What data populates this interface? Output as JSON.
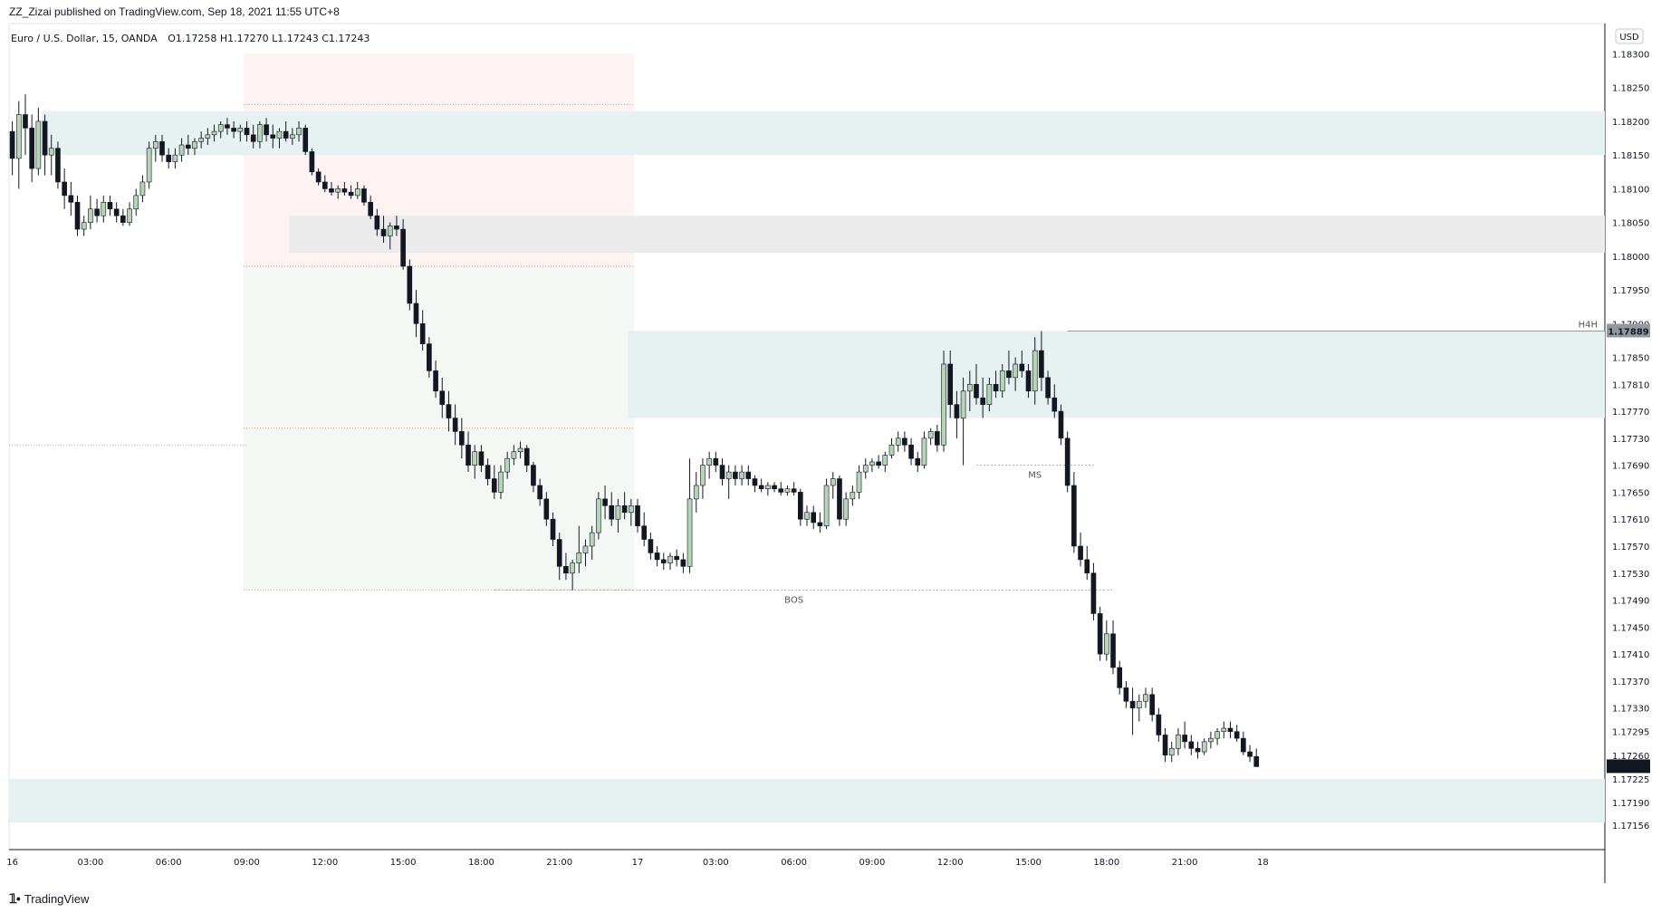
{
  "header": {
    "published_text": "ZZ_Zizai published on TradingView.com, Sep 18, 2021 11:55 UTC+8"
  },
  "footer": {
    "logo_label": "TradingView"
  },
  "legend": {
    "symbol_text": "Euro / U.S. Dollar, 15, OANDA",
    "ohlc_text": "O1.17258  H1.17270  L1.17243  C1.17243"
  },
  "currency_badge": "USD",
  "annotations": {
    "h4h_label": "H4H",
    "h4h_price": "1.17889",
    "ms_label": "MS",
    "bos_label": "BOS",
    "last_price": "1.17243"
  },
  "colors": {
    "bull": "#b7d4b7",
    "bear": "#131722",
    "wick": "#131722",
    "zone": "#e8f1f1",
    "zone_gray": "#ebebeb",
    "premium": "#fdf3f3",
    "discount": "#f4f8f4",
    "dotted": "#c9a27a",
    "last_price_bg": "#131722",
    "h4h_bg": "#9598a1"
  },
  "chart_data": {
    "type": "candlestick",
    "symbol": "EURUSD",
    "timeframe": "15",
    "y_axis_ticks": [
      1.183,
      1.1825,
      1.182,
      1.1815,
      1.181,
      1.1805,
      1.18,
      1.1795,
      1.179,
      1.1785,
      1.1781,
      1.1777,
      1.1773,
      1.1769,
      1.1765,
      1.1761,
      1.1757,
      1.1753,
      1.1749,
      1.1745,
      1.1741,
      1.1737,
      1.1733,
      1.17295,
      1.1726,
      1.17225,
      1.1719,
      1.17156
    ],
    "y_axis_tick_labels": [
      "1.18300",
      "1.18250",
      "1.18200",
      "1.18150",
      "1.18100",
      "1.18050",
      "1.18000",
      "1.17950",
      "1.17900",
      "1.17850",
      "1.17810",
      "1.17770",
      "1.17730",
      "1.17690",
      "1.17650",
      "1.17610",
      "1.17570",
      "1.17530",
      "1.17490",
      "1.17450",
      "1.17410",
      "1.17370",
      "1.17330",
      "1.17295",
      "1.17260",
      "1.17225",
      "1.17190",
      "1.17156"
    ],
    "x_axis_labels": [
      "16",
      "03:00",
      "06:00",
      "09:00",
      "12:00",
      "15:00",
      "18:00",
      "21:00",
      "17",
      "03:00",
      "06:00",
      "09:00",
      "12:00",
      "15:00",
      "18:00",
      "21:00",
      "18"
    ],
    "bar_count": 245,
    "label_bar_index": [
      0,
      12,
      24,
      36,
      48,
      60,
      72,
      84,
      96,
      108,
      120,
      132,
      144,
      156,
      168,
      180,
      192
    ],
    "ohlc": [
      [
        1.18185,
        1.182,
        1.1812,
        1.18145
      ],
      [
        1.18145,
        1.1823,
        1.181,
        1.1821
      ],
      [
        1.1821,
        1.1824,
        1.1815,
        1.1819
      ],
      [
        1.1819,
        1.1821,
        1.1811,
        1.1813
      ],
      [
        1.1813,
        1.1822,
        1.1812,
        1.182
      ],
      [
        1.182,
        1.1821,
        1.1812,
        1.1815
      ],
      [
        1.1815,
        1.1818,
        1.1812,
        1.1816
      ],
      [
        1.1816,
        1.1817,
        1.181,
        1.1811
      ],
      [
        1.1811,
        1.1813,
        1.1807,
        1.1809
      ],
      [
        1.1809,
        1.1811,
        1.1806,
        1.1808
      ],
      [
        1.1808,
        1.1809,
        1.1803,
        1.1804
      ],
      [
        1.1804,
        1.1806,
        1.1803,
        1.1805
      ],
      [
        1.1805,
        1.1809,
        1.1804,
        1.1807
      ],
      [
        1.1807,
        1.18085,
        1.1805,
        1.1806
      ],
      [
        1.1806,
        1.1809,
        1.1805,
        1.1808
      ],
      [
        1.1808,
        1.1809,
        1.1806,
        1.1807
      ],
      [
        1.1807,
        1.1808,
        1.1805,
        1.1806
      ],
      [
        1.1806,
        1.1807,
        1.18045,
        1.1805
      ],
      [
        1.1805,
        1.1808,
        1.18045,
        1.1807
      ],
      [
        1.1807,
        1.181,
        1.1806,
        1.1809
      ],
      [
        1.1809,
        1.1812,
        1.1808,
        1.1811
      ],
      [
        1.1811,
        1.1817,
        1.181,
        1.1816
      ],
      [
        1.1816,
        1.1818,
        1.1814,
        1.1817
      ],
      [
        1.1817,
        1.1818,
        1.1814,
        1.1815
      ],
      [
        1.1815,
        1.1816,
        1.1813,
        1.1814
      ],
      [
        1.1814,
        1.1816,
        1.1813,
        1.1815
      ],
      [
        1.1815,
        1.18175,
        1.1814,
        1.18165
      ],
      [
        1.18165,
        1.1818,
        1.1815,
        1.1816
      ],
      [
        1.1816,
        1.18175,
        1.1815,
        1.1817
      ],
      [
        1.1817,
        1.18185,
        1.1816,
        1.18175
      ],
      [
        1.18175,
        1.1819,
        1.18165,
        1.1818
      ],
      [
        1.1818,
        1.18195,
        1.1817,
        1.18185
      ],
      [
        1.18185,
        1.182,
        1.18175,
        1.18195
      ],
      [
        1.18195,
        1.18205,
        1.1818,
        1.1819
      ],
      [
        1.1819,
        1.182,
        1.18175,
        1.18185
      ],
      [
        1.18185,
        1.18195,
        1.1817,
        1.1819
      ],
      [
        1.1819,
        1.182,
        1.1817,
        1.1818
      ],
      [
        1.1818,
        1.18195,
        1.1816,
        1.1817
      ],
      [
        1.1817,
        1.182,
        1.1816,
        1.18195
      ],
      [
        1.18195,
        1.18205,
        1.1817,
        1.1818
      ],
      [
        1.1818,
        1.18195,
        1.1816,
        1.18175
      ],
      [
        1.18175,
        1.1819,
        1.1816,
        1.18185
      ],
      [
        1.18185,
        1.182,
        1.1817,
        1.18175
      ],
      [
        1.18175,
        1.1819,
        1.18165,
        1.1818
      ],
      [
        1.1818,
        1.182,
        1.1817,
        1.1819
      ],
      [
        1.1819,
        1.18195,
        1.1815,
        1.18155
      ],
      [
        1.18155,
        1.1816,
        1.1812,
        1.18125
      ],
      [
        1.18125,
        1.1813,
        1.18105,
        1.1811
      ],
      [
        1.1811,
        1.1812,
        1.18095,
        1.181
      ],
      [
        1.181,
        1.1811,
        1.1809,
        1.18095
      ],
      [
        1.18095,
        1.18105,
        1.18085,
        1.181
      ],
      [
        1.181,
        1.1811,
        1.1809,
        1.18095
      ],
      [
        1.18095,
        1.18105,
        1.18085,
        1.1809
      ],
      [
        1.1809,
        1.1811,
        1.18085,
        1.181
      ],
      [
        1.181,
        1.18105,
        1.18075,
        1.1808
      ],
      [
        1.1808,
        1.1809,
        1.18055,
        1.1806
      ],
      [
        1.1806,
        1.1807,
        1.1803,
        1.1804
      ],
      [
        1.1804,
        1.1806,
        1.1802,
        1.1803
      ],
      [
        1.1803,
        1.1805,
        1.1801,
        1.18045
      ],
      [
        1.18045,
        1.1806,
        1.1803,
        1.1804
      ],
      [
        1.1804,
        1.18055,
        1.1798,
        1.17985
      ],
      [
        1.17985,
        1.17995,
        1.1792,
        1.1793
      ],
      [
        1.1793,
        1.1795,
        1.1788,
        1.179
      ],
      [
        1.179,
        1.1792,
        1.1786,
        1.1787
      ],
      [
        1.1787,
        1.1788,
        1.1782,
        1.1783
      ],
      [
        1.1783,
        1.17845,
        1.1779,
        1.178
      ],
      [
        1.178,
        1.1782,
        1.1776,
        1.1778
      ],
      [
        1.1778,
        1.178,
        1.1774,
        1.1776
      ],
      [
        1.1776,
        1.1778,
        1.1772,
        1.1774
      ],
      [
        1.1774,
        1.1776,
        1.177,
        1.1772
      ],
      [
        1.1772,
        1.1774,
        1.1768,
        1.1769
      ],
      [
        1.1769,
        1.1772,
        1.1767,
        1.1771
      ],
      [
        1.1771,
        1.1772,
        1.1768,
        1.1769
      ],
      [
        1.1769,
        1.177,
        1.1766,
        1.1767
      ],
      [
        1.1767,
        1.1769,
        1.1764,
        1.1765
      ],
      [
        1.1765,
        1.1769,
        1.1764,
        1.1768
      ],
      [
        1.1768,
        1.1771,
        1.1767,
        1.177
      ],
      [
        1.177,
        1.1772,
        1.1769,
        1.1771
      ],
      [
        1.1771,
        1.17725,
        1.177,
        1.17715
      ],
      [
        1.17715,
        1.1772,
        1.1768,
        1.1769
      ],
      [
        1.1769,
        1.17695,
        1.1765,
        1.1766
      ],
      [
        1.1766,
        1.1767,
        1.1763,
        1.1764
      ],
      [
        1.1764,
        1.1765,
        1.176,
        1.1761
      ],
      [
        1.1761,
        1.1762,
        1.1757,
        1.1758
      ],
      [
        1.1758,
        1.1759,
        1.1752,
        1.1754
      ],
      [
        1.1754,
        1.1756,
        1.1752,
        1.1753
      ],
      [
        1.1753,
        1.1755,
        1.17505,
        1.17545
      ],
      [
        1.17545,
        1.176,
        1.1753,
        1.1756
      ],
      [
        1.1756,
        1.1758,
        1.1754,
        1.1757
      ],
      [
        1.1757,
        1.176,
        1.1755,
        1.1759
      ],
      [
        1.1759,
        1.1765,
        1.1758,
        1.1764
      ],
      [
        1.1764,
        1.1766,
        1.1761,
        1.1763
      ],
      [
        1.1763,
        1.1765,
        1.176,
        1.1761
      ],
      [
        1.1761,
        1.1764,
        1.1759,
        1.1763
      ],
      [
        1.1763,
        1.1765,
        1.1761,
        1.1762
      ],
      [
        1.1762,
        1.1764,
        1.176,
        1.1763
      ],
      [
        1.1763,
        1.1764,
        1.1759,
        1.176
      ],
      [
        1.176,
        1.1762,
        1.1757,
        1.1758
      ],
      [
        1.1758,
        1.1759,
        1.1755,
        1.1756
      ],
      [
        1.1756,
        1.1757,
        1.1754,
        1.1755
      ],
      [
        1.1755,
        1.1756,
        1.17535,
        1.17545
      ],
      [
        1.17545,
        1.1756,
        1.17535,
        1.17555
      ],
      [
        1.17555,
        1.17565,
        1.1754,
        1.1755
      ],
      [
        1.1755,
        1.1756,
        1.1753,
        1.1754
      ],
      [
        1.1754,
        1.177,
        1.1753,
        1.1764
      ],
      [
        1.1764,
        1.1768,
        1.1762,
        1.1766
      ],
      [
        1.1766,
        1.177,
        1.1764,
        1.1769
      ],
      [
        1.1769,
        1.1771,
        1.1767,
        1.177
      ],
      [
        1.177,
        1.1771,
        1.1768,
        1.1769
      ],
      [
        1.1769,
        1.177,
        1.1766,
        1.1767
      ],
      [
        1.1767,
        1.1769,
        1.1764,
        1.1768
      ],
      [
        1.1768,
        1.1769,
        1.1766,
        1.1767
      ],
      [
        1.1767,
        1.1769,
        1.1766,
        1.1768
      ],
      [
        1.1768,
        1.1769,
        1.1766,
        1.1767
      ],
      [
        1.1767,
        1.17675,
        1.1765,
        1.1766
      ],
      [
        1.1766,
        1.1767,
        1.1765,
        1.17655
      ],
      [
        1.17655,
        1.17665,
        1.17645,
        1.1766
      ],
      [
        1.1766,
        1.17665,
        1.1765,
        1.17655
      ],
      [
        1.17655,
        1.17665,
        1.17645,
        1.1765
      ],
      [
        1.1765,
        1.1766,
        1.17645,
        1.17655
      ],
      [
        1.17655,
        1.17665,
        1.17645,
        1.1765
      ],
      [
        1.1765,
        1.17655,
        1.176,
        1.1761
      ],
      [
        1.1761,
        1.1763,
        1.176,
        1.1762
      ],
      [
        1.1762,
        1.1763,
        1.17595,
        1.17605
      ],
      [
        1.17605,
        1.1762,
        1.1759,
        1.176
      ],
      [
        1.176,
        1.1767,
        1.17595,
        1.1766
      ],
      [
        1.1766,
        1.1768,
        1.1764,
        1.1767
      ],
      [
        1.1767,
        1.17675,
        1.176,
        1.1761
      ],
      [
        1.1761,
        1.1765,
        1.176,
        1.1764
      ],
      [
        1.1764,
        1.1766,
        1.1763,
        1.1765
      ],
      [
        1.1765,
        1.1769,
        1.1764,
        1.1768
      ],
      [
        1.1768,
        1.177,
        1.1767,
        1.1769
      ],
      [
        1.1769,
        1.177,
        1.1768,
        1.17695
      ],
      [
        1.17695,
        1.17705,
        1.17685,
        1.1769
      ],
      [
        1.1769,
        1.1771,
        1.1768,
        1.17705
      ],
      [
        1.17705,
        1.1773,
        1.177,
        1.1772
      ],
      [
        1.1772,
        1.1774,
        1.1771,
        1.1773
      ],
      [
        1.1773,
        1.1774,
        1.1771,
        1.1772
      ],
      [
        1.1772,
        1.1773,
        1.1769,
        1.177
      ],
      [
        1.177,
        1.1771,
        1.1768,
        1.1769
      ],
      [
        1.1769,
        1.1774,
        1.17685,
        1.1773
      ],
      [
        1.1773,
        1.17745,
        1.1772,
        1.1774
      ],
      [
        1.1774,
        1.1775,
        1.1771,
        1.1772
      ],
      [
        1.1772,
        1.1786,
        1.1771,
        1.1784
      ],
      [
        1.1784,
        1.1786,
        1.1776,
        1.1778
      ],
      [
        1.1778,
        1.178,
        1.1773,
        1.1776
      ],
      [
        1.1776,
        1.1782,
        1.1769,
        1.178
      ],
      [
        1.178,
        1.1783,
        1.1777,
        1.1781
      ],
      [
        1.1781,
        1.1784,
        1.1778,
        1.1779
      ],
      [
        1.1779,
        1.1782,
        1.1776,
        1.1778
      ],
      [
        1.1778,
        1.1782,
        1.1777,
        1.1781
      ],
      [
        1.1781,
        1.1783,
        1.1779,
        1.178
      ],
      [
        1.178,
        1.1784,
        1.1779,
        1.1783
      ],
      [
        1.1783,
        1.1786,
        1.1781,
        1.1782
      ],
      [
        1.1782,
        1.1785,
        1.178,
        1.1784
      ],
      [
        1.1784,
        1.1786,
        1.1782,
        1.1783
      ],
      [
        1.1783,
        1.1784,
        1.1779,
        1.178
      ],
      [
        1.178,
        1.1788,
        1.1778,
        1.1786
      ],
      [
        1.1786,
        1.17889,
        1.178,
        1.1782
      ],
      [
        1.1782,
        1.1783,
        1.1778,
        1.1779
      ],
      [
        1.1779,
        1.1781,
        1.1776,
        1.1777
      ],
      [
        1.1777,
        1.1778,
        1.1772,
        1.1773
      ],
      [
        1.1773,
        1.1774,
        1.1765,
        1.1766
      ],
      [
        1.1766,
        1.1768,
        1.1756,
        1.1757
      ],
      [
        1.1757,
        1.1759,
        1.1754,
        1.1755
      ],
      [
        1.1755,
        1.1757,
        1.1752,
        1.1753
      ],
      [
        1.1753,
        1.17545,
        1.1746,
        1.1747
      ],
      [
        1.1747,
        1.1748,
        1.174,
        1.1741
      ],
      [
        1.1741,
        1.1746,
        1.174,
        1.1744
      ],
      [
        1.1744,
        1.1746,
        1.1738,
        1.1739
      ],
      [
        1.1739,
        1.174,
        1.1735,
        1.1736
      ],
      [
        1.1736,
        1.1737,
        1.1733,
        1.1734
      ],
      [
        1.1734,
        1.1736,
        1.1729,
        1.1733
      ],
      [
        1.1733,
        1.1735,
        1.1731,
        1.1734
      ],
      [
        1.1734,
        1.1736,
        1.1733,
        1.1735
      ],
      [
        1.1735,
        1.1736,
        1.1731,
        1.1732
      ],
      [
        1.1732,
        1.1733,
        1.1728,
        1.1729
      ],
      [
        1.1729,
        1.173,
        1.1725,
        1.1726
      ],
      [
        1.1726,
        1.1728,
        1.1725,
        1.1727
      ],
      [
        1.1727,
        1.173,
        1.1726,
        1.1729
      ],
      [
        1.1729,
        1.1731,
        1.1727,
        1.1728
      ],
      [
        1.1728,
        1.1729,
        1.1726,
        1.1727
      ],
      [
        1.1727,
        1.1728,
        1.17255,
        1.17265
      ],
      [
        1.17265,
        1.17285,
        1.1726,
        1.1728
      ],
      [
        1.1728,
        1.17295,
        1.1727,
        1.17285
      ],
      [
        1.17285,
        1.173,
        1.17275,
        1.17295
      ],
      [
        1.17295,
        1.1731,
        1.17285,
        1.173
      ],
      [
        1.173,
        1.1731,
        1.17285,
        1.17295
      ],
      [
        1.17295,
        1.17305,
        1.1728,
        1.17285
      ],
      [
        1.17285,
        1.17295,
        1.1726,
        1.17265
      ],
      [
        1.17265,
        1.17275,
        1.1725,
        1.17258
      ],
      [
        1.17258,
        1.1727,
        1.17243,
        1.17243
      ]
    ],
    "zones": [
      {
        "from": 1.18215,
        "to": 1.1815,
        "start_bar": 5,
        "color_key": "zone"
      },
      {
        "from": 1.1806,
        "to": 1.18005,
        "start_bar": 43,
        "color_key": "zone_gray"
      },
      {
        "from": 1.17889,
        "to": 1.1776,
        "start_bar": 95,
        "color_key": "zone"
      },
      {
        "from": 1.17225,
        "to": 1.1716,
        "start_bar": 0,
        "color_key": "zone"
      }
    ],
    "premium_zone": {
      "from": 1.183,
      "to": 1.17985,
      "start_bar": 36,
      "end_bar": 96
    },
    "discount_zone": {
      "from": 1.17985,
      "to": 1.17505,
      "start_bar": 36,
      "end_bar": 96
    },
    "levels": [
      {
        "price": 1.18225,
        "start_bar": 36,
        "end_bar": 96
      },
      {
        "price": 1.17985,
        "start_bar": 36,
        "end_bar": 96
      },
      {
        "price": 1.17745,
        "start_bar": 36,
        "end_bar": 96
      },
      {
        "price": 1.17505,
        "start_bar": 36,
        "end_bar": 96
      }
    ],
    "bos_price": 1.17505,
    "ms_price": 1.1769,
    "h4h_price": 1.17889,
    "last_price": 1.17243
  }
}
